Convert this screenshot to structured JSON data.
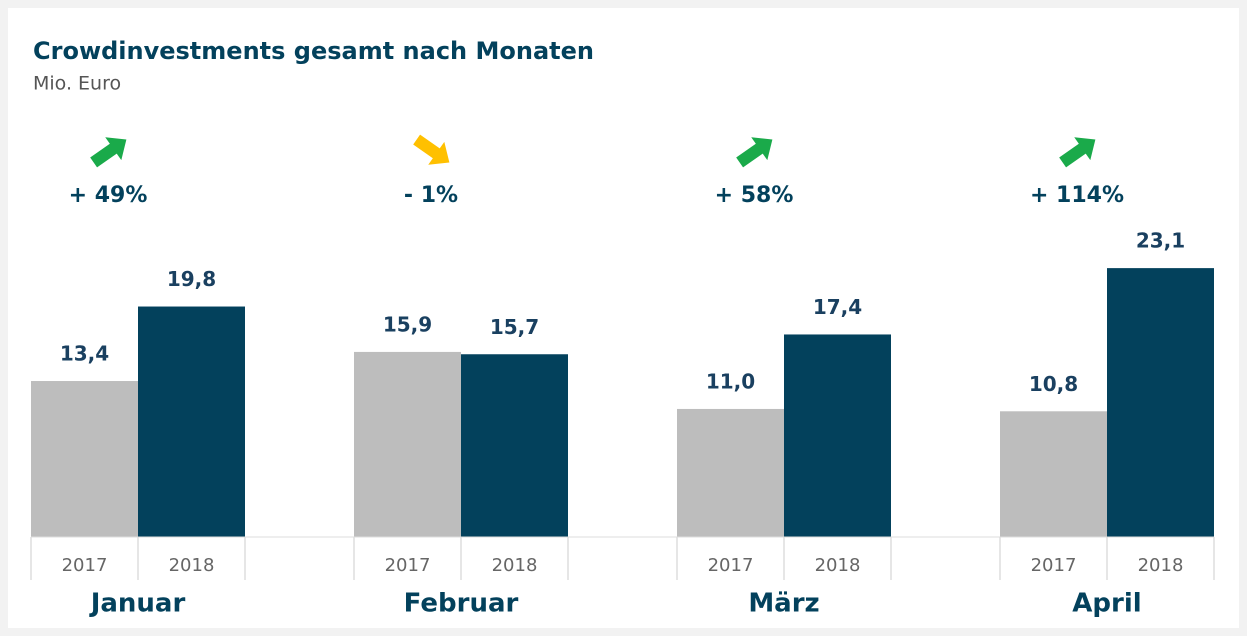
{
  "chart_data": {
    "type": "bar",
    "title": "Crowdinvestments gesamt nach Monaten",
    "subtitle": "Mio. Euro",
    "categories": [
      "Januar",
      "Februar",
      "März",
      "April"
    ],
    "series": [
      {
        "name": "2017",
        "color": "#bdbdbd",
        "values": [
          13.4,
          15.9,
          11.0,
          10.8
        ],
        "value_labels": [
          "13,4",
          "15,9",
          "11,0",
          "10,8"
        ]
      },
      {
        "name": "2018",
        "color": "#03415c",
        "values": [
          19.8,
          15.7,
          17.4,
          23.1
        ],
        "value_labels": [
          "19,8",
          "15,7",
          "17,4",
          "23,1"
        ]
      }
    ],
    "changes": [
      {
        "value": 49,
        "label": "+ 49%"
      },
      {
        "value": -1,
        "label": "- 1%"
      },
      {
        "value": 58,
        "label": "+ 58%"
      },
      {
        "value": 114,
        "label": "+ 114%"
      }
    ],
    "up_color": "#1aaa4a",
    "down_color": "#ffc000",
    "ylim": [
      0,
      25
    ]
  }
}
